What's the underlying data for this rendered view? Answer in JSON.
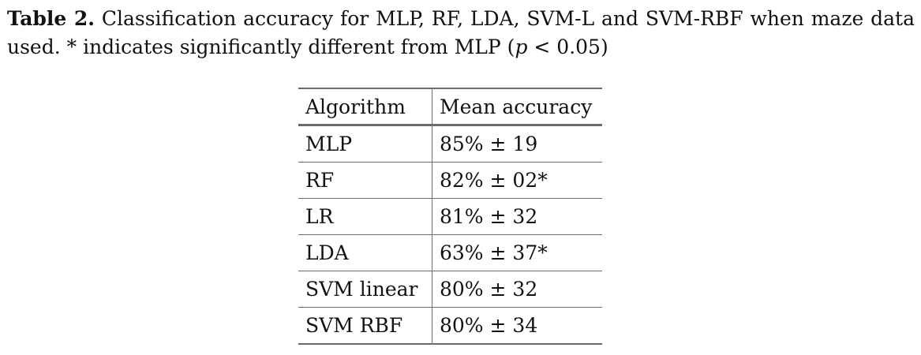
{
  "caption": {
    "label": "Table 2.",
    "text_part1": "Classification accuracy for MLP, RF, LDA, SVM-L and SVM-RBF when maze data used. * indicates significantly different from MLP (",
    "p_symbol": "p",
    "text_part2": " < 0.05)"
  },
  "table": {
    "headers": {
      "algorithm": "Algorithm",
      "mean_accuracy": "Mean accuracy"
    },
    "rows": [
      {
        "algorithm": "MLP",
        "accuracy": "85% ± 19"
      },
      {
        "algorithm": "RF",
        "accuracy": "82% ± 02*"
      },
      {
        "algorithm": "LR",
        "accuracy": "81% ± 32"
      },
      {
        "algorithm": "LDA",
        "accuracy": "63% ± 37*"
      },
      {
        "algorithm": "SVM linear",
        "accuracy": "80% ± 32"
      },
      {
        "algorithm": "SVM RBF",
        "accuracy": "80% ± 34"
      }
    ]
  }
}
